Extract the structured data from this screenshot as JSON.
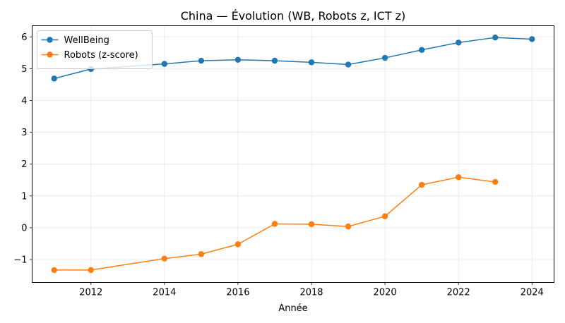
{
  "chart_data": {
    "type": "line",
    "title": "China — Évolution (WB, Robots z, ICT z)",
    "xlabel": "Année",
    "ylabel": "",
    "xlim": [
      2010.4,
      2024.6
    ],
    "ylim": [
      -1.72,
      6.35
    ],
    "x_ticks": [
      2012,
      2014,
      2016,
      2018,
      2020,
      2022,
      2024
    ],
    "y_ticks": [
      -1,
      0,
      1,
      2,
      3,
      4,
      5,
      6
    ],
    "y_tick_labels": [
      "−1",
      "0",
      "1",
      "2",
      "3",
      "4",
      "5",
      "6"
    ],
    "grid": true,
    "legend_position": "upper-left",
    "series": [
      {
        "name": "WellBeing",
        "color": "#1f77b4",
        "x": [
          2011,
          2012,
          2014,
          2015,
          2016,
          2017,
          2018,
          2019,
          2020,
          2021,
          2022,
          2023,
          2024
        ],
        "y": [
          4.69,
          4.99,
          5.15,
          5.25,
          5.28,
          5.25,
          5.2,
          5.13,
          5.34,
          5.59,
          5.82,
          5.98,
          5.93
        ]
      },
      {
        "name": "Robots (z-score)",
        "color": "#ff7f0e",
        "x": [
          2011,
          2012,
          2014,
          2015,
          2016,
          2017,
          2018,
          2019,
          2020,
          2021,
          2022,
          2023
        ],
        "y": [
          -1.33,
          -1.33,
          -0.97,
          -0.83,
          -0.52,
          0.12,
          0.11,
          0.04,
          0.36,
          1.35,
          1.59,
          1.44
        ]
      }
    ]
  }
}
